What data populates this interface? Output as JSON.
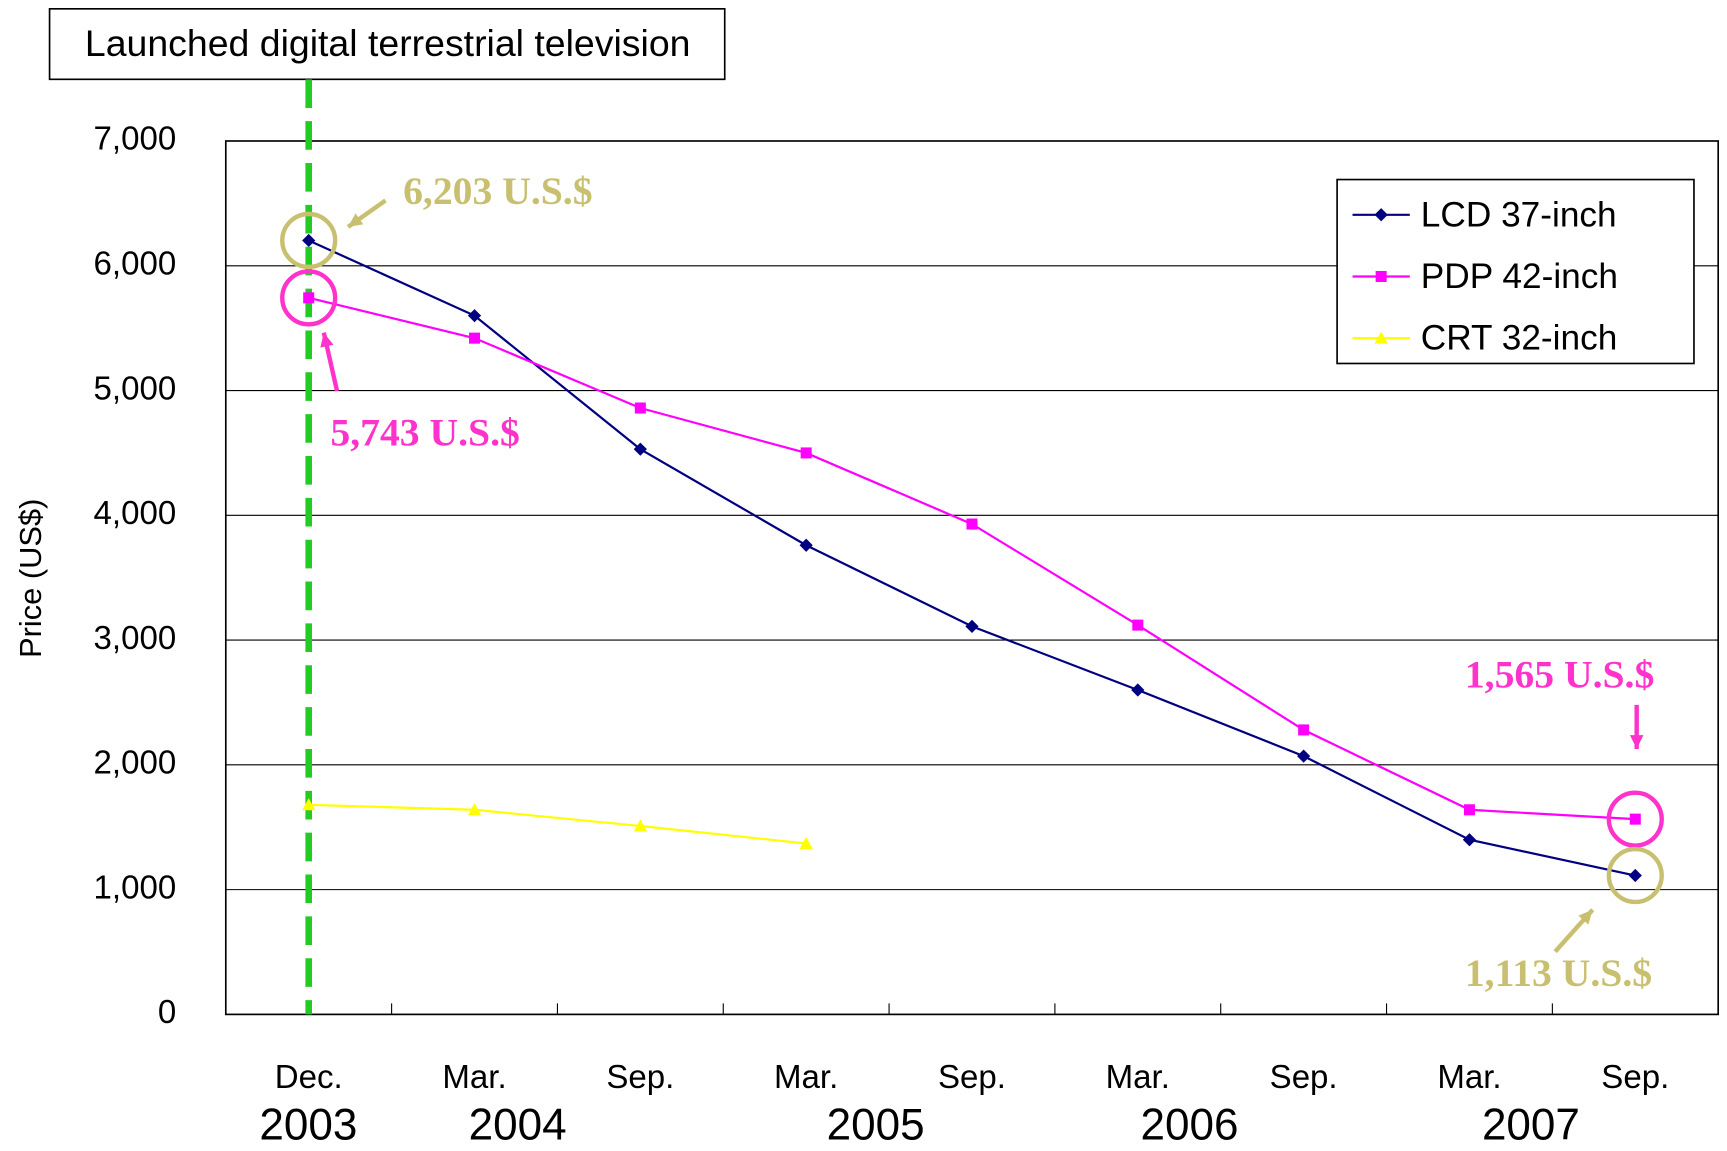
{
  "chart_data": {
    "type": "line",
    "annotation_title": "Launched digital terrestrial television",
    "ylabel": "Price (US$)",
    "categories": [
      "Dec.",
      "Mar.",
      "Sep.",
      "Mar.",
      "Sep.",
      "Mar.",
      "Sep.",
      "Mar.",
      "Sep."
    ],
    "years": [
      "2003",
      "2004",
      "2005",
      "2006",
      "2007"
    ],
    "series": [
      {
        "name": "LCD 37-inch",
        "color": "#000080",
        "marker": "diamond",
        "values": [
          6203,
          5600,
          4530,
          3760,
          3110,
          2600,
          2070,
          1400,
          1113
        ]
      },
      {
        "name": "PDP 42-inch",
        "color": "#ff00ff",
        "marker": "square",
        "values": [
          5743,
          5420,
          4860,
          4500,
          3930,
          3120,
          2280,
          1640,
          1565
        ]
      },
      {
        "name": "CRT 32-inch",
        "color": "#ffff00",
        "marker": "triangle",
        "values": [
          1680,
          1640,
          1510,
          1370,
          null,
          null,
          null,
          null,
          null
        ]
      }
    ],
    "annotations": [
      "6,203 U.S.$",
      "5,743 U.S.$",
      "1,565 U.S.$",
      "1,113 U.S.$"
    ],
    "ylim": [
      0,
      7000
    ],
    "yticks": [
      0,
      {
        "value": 1000,
        "label": "1,000"
      },
      {
        "value": 2000,
        "label": "2,000"
      },
      {
        "value": 3000,
        "label": "3,000"
      },
      {
        "value": 4000,
        "label": "4,000"
      },
      {
        "value": 5000,
        "label": "5,000"
      },
      {
        "value": 6000,
        "label": "6,000"
      },
      {
        "value": 7000,
        "label": "7,000"
      }
    ],
    "grid": true,
    "legend": "upper right"
  }
}
